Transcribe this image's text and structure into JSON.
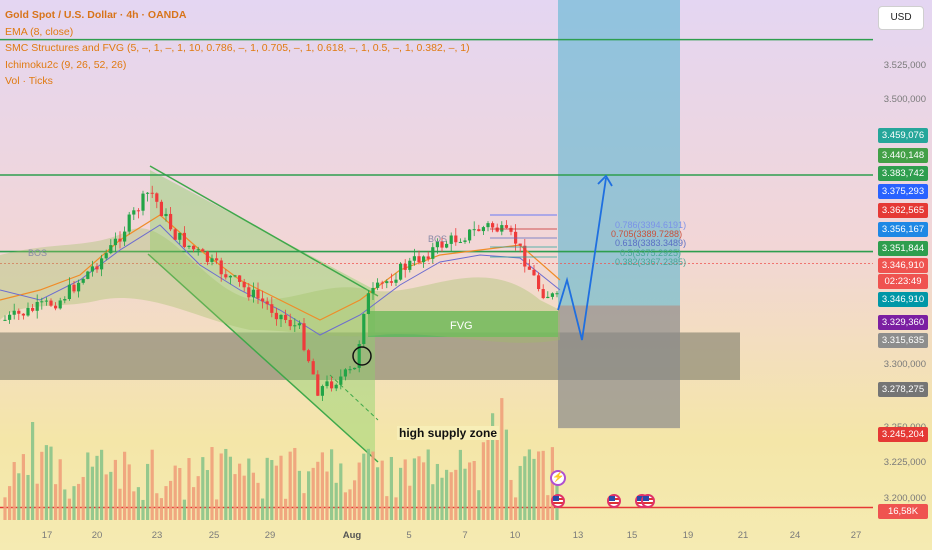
{
  "legend": {
    "title": "Gold Spot / U.S. Dollar · 4h · OANDA",
    "ema": "EMA (8, close)",
    "smc": "SMC Structures and FVG (5, –, 1, –, 1, 10, 0.786, –, 1, 0.705, –, 1, 0.618, –, 1, 0.5, –, 1, 0.382, –, 1)",
    "ichimoku": "Ichimoku2c (9, 26, 52, 26)",
    "vol": "Vol · Ticks"
  },
  "currency_button": "USD",
  "price_axis": {
    "plain_ticks": [
      "3.525,000",
      "3.500,000",
      "3.475,000",
      "3.300,000",
      "3.250,000",
      "3.225,000",
      "3.200,000"
    ],
    "tags": [
      {
        "text": "3.459,076",
        "color": "#26a69a"
      },
      {
        "text": "3.440,148",
        "color": "#43a047"
      },
      {
        "text": "3.383,742",
        "color": "#2e9e4e"
      },
      {
        "text": "3.375,293",
        "color": "#2962ff"
      },
      {
        "text": "3.362,565",
        "color": "#e53935"
      },
      {
        "text": "3.356,167",
        "color": "#1e88e5"
      },
      {
        "text": "3.351,844",
        "color": "#2e9e4e"
      },
      {
        "text": "3.346,910",
        "color": "#ef5350"
      },
      {
        "text": "02:23:49",
        "color": "#ef5350"
      },
      {
        "text": "3.346,910",
        "color": "#0097a7"
      },
      {
        "text": "3.329,360",
        "color": "#7b1fa2"
      },
      {
        "text": "3.315,635",
        "color": "#8d8d8d"
      },
      {
        "text": "3.278,275",
        "color": "#757575"
      },
      {
        "text": "3.245,204",
        "color": "#e53935"
      },
      {
        "text": "16,58K",
        "color": "#ef5350"
      }
    ]
  },
  "x_axis": {
    "labels": [
      "17",
      "20",
      "23",
      "25",
      "29",
      "Aug",
      "5",
      "7",
      "10",
      "13",
      "15",
      "19",
      "21",
      "24",
      "27"
    ]
  },
  "annotations": {
    "bos_left": "BOS",
    "bos_mid": "BOS",
    "fvg": "FVG",
    "high_supply_zone": "high supply zone",
    "fib_levels": [
      "0.786(3394.6191)",
      "0.705(3389.7288)",
      "0.618(3383.3489)",
      "0.5(3375.2925)",
      "0.382(3367.2385)"
    ]
  },
  "chart_data": {
    "type": "candlestick",
    "title": "Gold Spot / U.S. Dollar · 4h · OANDA",
    "interval": "4h",
    "currency": "USD",
    "last_price": 3346.91,
    "countdown": "02:23:49",
    "volume_last": "16,58K",
    "horizontal_levels": [
      3440.148,
      3383.742,
      3351.844,
      3245.204
    ],
    "demand_zone": [
      3300.0,
      3315.635
    ],
    "projection_box": {
      "target": 3459.076,
      "stop": 3278.275,
      "entry": 3329.36
    },
    "legend": [
      "EMA (8, close)",
      "SMC Structures and FVG",
      "Ichimoku2c (9, 26, 52, 26)",
      "Vol · Ticks"
    ],
    "ylim": [
      3190,
      3540
    ],
    "grid": false,
    "legend_position": "top-left",
    "colors": {
      "up": "#22a447",
      "down": "#ef3b3b",
      "support": "#2e9e4e",
      "supply": "#e53935",
      "projection_top": "#4fb5cf",
      "projection_bottom": "#8a8a8a"
    }
  }
}
